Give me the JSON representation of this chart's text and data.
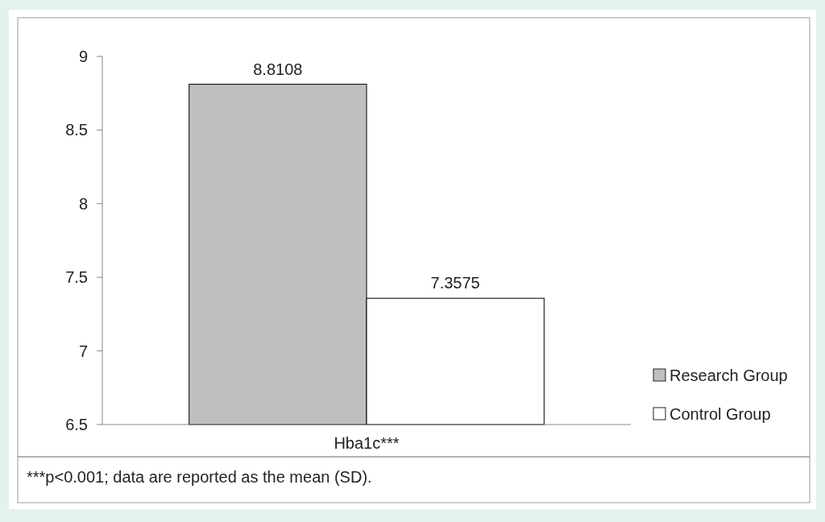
{
  "chart_data": {
    "type": "bar",
    "categories": [
      "Hba1c***"
    ],
    "series": [
      {
        "name": "Research Group",
        "color": "#c0bfbf",
        "values": [
          8.8108
        ]
      },
      {
        "name": "Control Group",
        "color": "#ffffff",
        "values": [
          7.3575
        ]
      }
    ],
    "ylim": [
      6.5,
      9
    ],
    "yticks": [
      {
        "value": 6.5,
        "label": "6.5"
      },
      7,
      {
        "value": 7.5,
        "label": "7.5"
      },
      8,
      {
        "value": 8.5,
        "label": "8.5"
      },
      9
    ],
    "data_labels": true,
    "legend": "right",
    "grid": false,
    "annotations": [
      "***p<0.001; data are reported as the mean (SD)."
    ]
  }
}
